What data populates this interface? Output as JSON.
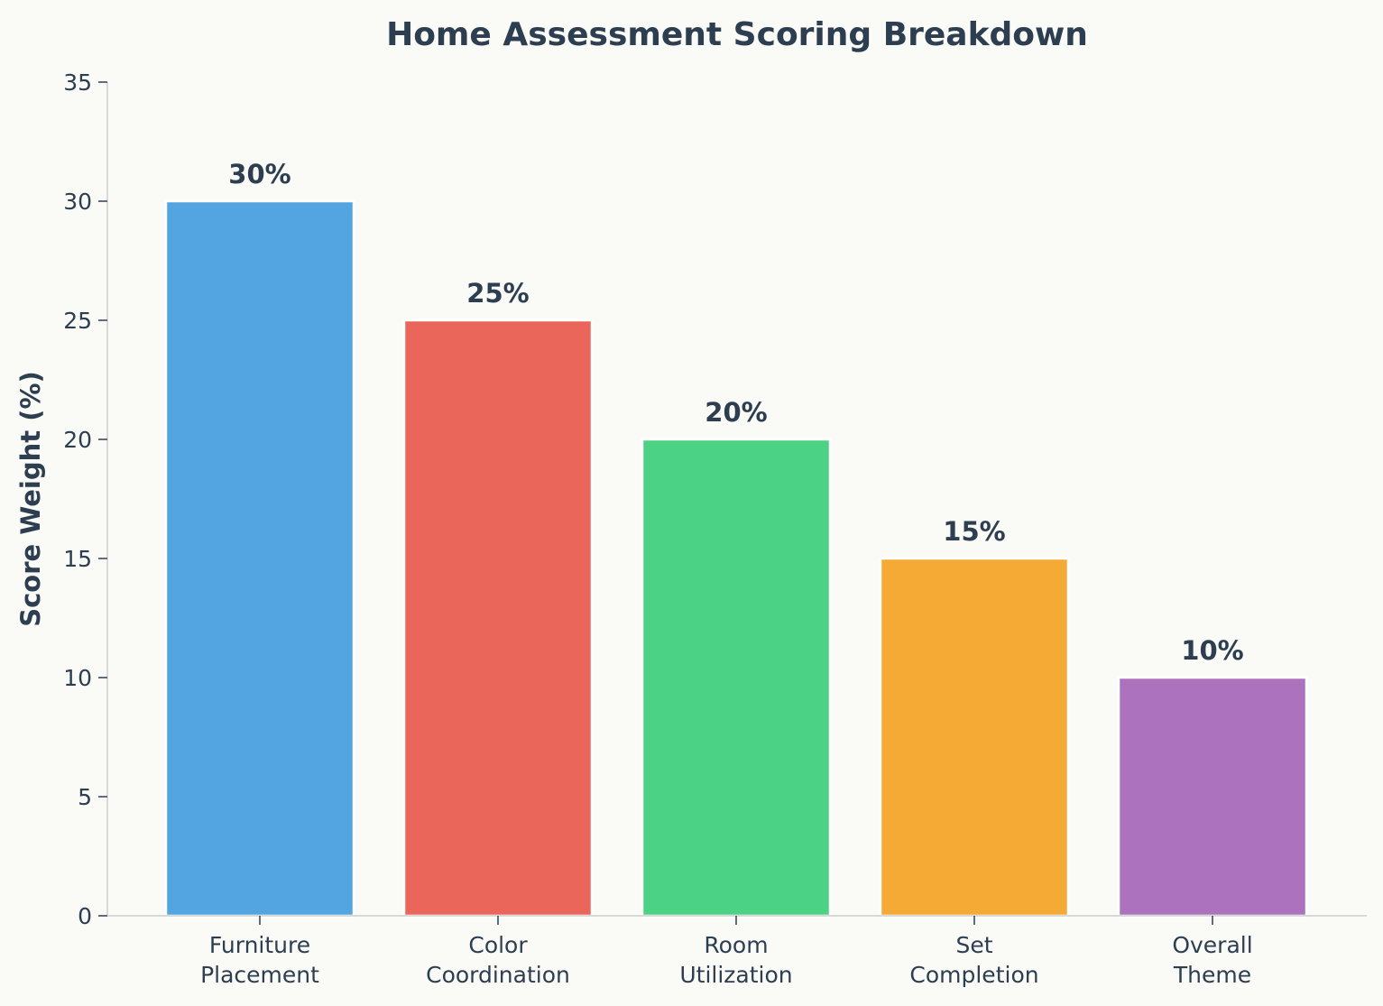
{
  "chart_data": {
    "type": "bar",
    "title": "Home Assessment Scoring Breakdown",
    "xlabel": "",
    "ylabel": "Score Weight (%)",
    "ylim": [
      0,
      35
    ],
    "yticks": [
      0,
      5,
      10,
      15,
      20,
      25,
      30,
      35
    ],
    "categories": [
      [
        "Furniture",
        "Placement"
      ],
      [
        "Color",
        "Coordination"
      ],
      [
        "Room",
        "Utilization"
      ],
      [
        "Set",
        "Completion"
      ],
      [
        "Overall",
        "Theme"
      ]
    ],
    "values": [
      30,
      25,
      20,
      15,
      10
    ],
    "data_labels": [
      "30%",
      "25%",
      "20%",
      "15%",
      "10%"
    ],
    "colors": [
      "#52a5e0",
      "#eb665a",
      "#4cd285",
      "#f5aa36",
      "#ac72be"
    ],
    "grid": false,
    "legend": "none"
  }
}
